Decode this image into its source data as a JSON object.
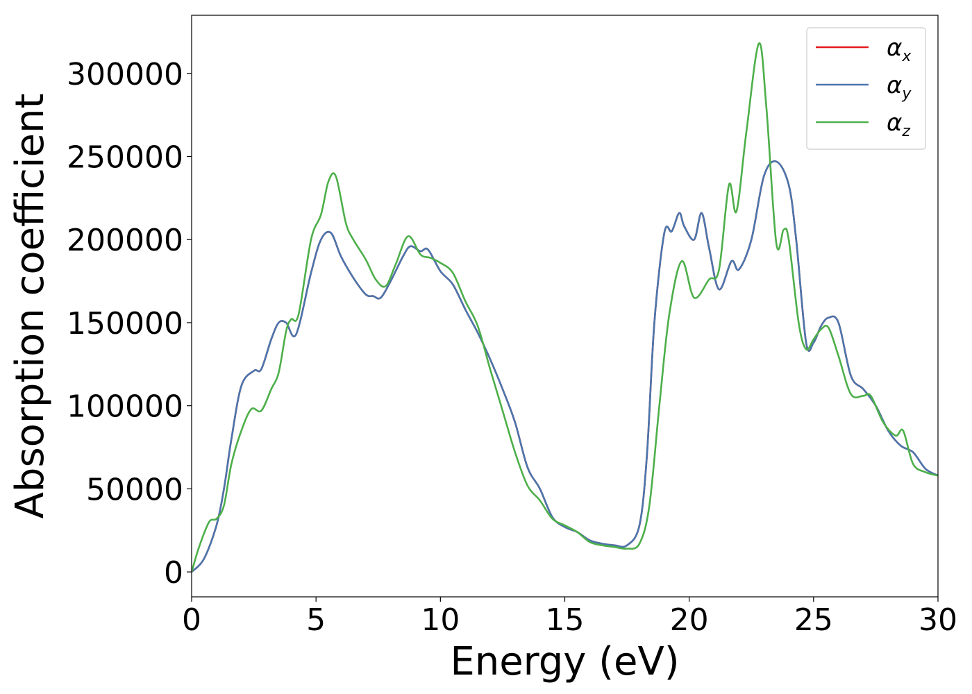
{
  "chart_data": {
    "type": "line",
    "title": "",
    "xlabel": "Energy (eV)",
    "ylabel": "Absorption coefficient",
    "xlim": [
      0,
      30
    ],
    "ylim": [
      -15000,
      335000
    ],
    "xticks": [
      0,
      5,
      10,
      15,
      20,
      25,
      30
    ],
    "xtick_labels": [
      "0",
      "5",
      "10",
      "15",
      "20",
      "25",
      "30"
    ],
    "yticks": [
      0,
      50000,
      100000,
      150000,
      200000,
      250000,
      300000
    ],
    "ytick_labels": [
      "0",
      "50000",
      "100000",
      "150000",
      "200000",
      "250000",
      "300000"
    ],
    "grid": false,
    "legend_position": "top-right",
    "series": [
      {
        "name": "αx",
        "name_base": "α",
        "name_sub": "x",
        "color": "#e41a1c",
        "x": [
          0,
          0.5,
          1,
          1.3,
          1.6,
          2,
          2.5,
          2.8,
          3.2,
          3.5,
          3.8,
          4.2,
          4.8,
          5.2,
          5.6,
          6,
          6.5,
          7,
          7.3,
          7.6,
          8,
          8.5,
          8.8,
          9.2,
          9.5,
          10,
          10.5,
          11,
          11.5,
          12,
          12.5,
          13,
          13.5,
          14,
          14.5,
          15,
          15.5,
          16,
          16.5,
          17,
          17.5,
          18,
          18.3,
          18.6,
          19,
          19.3,
          19.6,
          19.8,
          20.2,
          20.5,
          20.8,
          21.2,
          21.7,
          22,
          22.5,
          23,
          23.5,
          24,
          24.3,
          24.7,
          25,
          25.3,
          25.6,
          26,
          26.5,
          27,
          27.5,
          28,
          28.5,
          29,
          29.5,
          30
        ],
        "y": [
          0,
          8000,
          28000,
          50000,
          80000,
          112000,
          121000,
          122000,
          140000,
          150000,
          150000,
          143000,
          180000,
          200000,
          204000,
          190000,
          177000,
          167000,
          166000,
          165000,
          175000,
          190000,
          196000,
          193000,
          194000,
          181000,
          173000,
          158000,
          144000,
          128000,
          110000,
          90000,
          63000,
          50000,
          33000,
          27000,
          24000,
          19000,
          17000,
          16000,
          16000,
          28000,
          70000,
          150000,
          204000,
          205000,
          216000,
          208000,
          200000,
          216000,
          195000,
          170000,
          187000,
          182000,
          200000,
          238000,
          247000,
          233000,
          200000,
          138000,
          138000,
          148000,
          153000,
          150000,
          118000,
          110000,
          100000,
          85000,
          76000,
          72000,
          62000,
          58000
        ]
      },
      {
        "name": "αy",
        "name_base": "α",
        "name_sub": "y",
        "color": "#4a76ad",
        "x": [
          0,
          0.5,
          1,
          1.3,
          1.6,
          2,
          2.5,
          2.8,
          3.2,
          3.5,
          3.8,
          4.2,
          4.8,
          5.2,
          5.6,
          6,
          6.5,
          7,
          7.3,
          7.6,
          8,
          8.5,
          8.8,
          9.2,
          9.5,
          10,
          10.5,
          11,
          11.5,
          12,
          12.5,
          13,
          13.5,
          14,
          14.5,
          15,
          15.5,
          16,
          16.5,
          17,
          17.5,
          18,
          18.3,
          18.6,
          19,
          19.3,
          19.6,
          19.8,
          20.2,
          20.5,
          20.8,
          21.2,
          21.7,
          22,
          22.5,
          23,
          23.5,
          24,
          24.3,
          24.7,
          25,
          25.3,
          25.6,
          26,
          26.5,
          27,
          27.5,
          28,
          28.5,
          29,
          29.5,
          30
        ],
        "y": [
          0,
          8000,
          28000,
          50000,
          80000,
          112000,
          121000,
          122000,
          140000,
          150000,
          150000,
          143000,
          180000,
          200000,
          204000,
          190000,
          177000,
          167000,
          166000,
          165000,
          175000,
          190000,
          196000,
          193000,
          194000,
          181000,
          173000,
          158000,
          144000,
          128000,
          110000,
          90000,
          63000,
          50000,
          33000,
          27000,
          24000,
          19000,
          17000,
          16000,
          16000,
          28000,
          70000,
          150000,
          204000,
          205000,
          216000,
          208000,
          200000,
          216000,
          195000,
          170000,
          187000,
          182000,
          200000,
          238000,
          247000,
          233000,
          200000,
          138000,
          138000,
          148000,
          153000,
          150000,
          118000,
          110000,
          100000,
          85000,
          76000,
          72000,
          62000,
          58000
        ]
      },
      {
        "name": "αz",
        "name_base": "α",
        "name_sub": "z",
        "color": "#4daf4a",
        "x": [
          0,
          0.3,
          0.7,
          1,
          1.3,
          1.6,
          2,
          2.4,
          2.8,
          3.2,
          3.5,
          3.8,
          4,
          4.3,
          4.8,
          5.2,
          5.5,
          5.8,
          6.2,
          6.5,
          7,
          7.4,
          7.8,
          8.2,
          8.7,
          9.2,
          9.6,
          10,
          10.5,
          11,
          11.5,
          12,
          12.5,
          13,
          13.5,
          14,
          14.5,
          15,
          15.5,
          16,
          16.5,
          17,
          17.5,
          18,
          18.4,
          18.8,
          19.2,
          19.7,
          20.2,
          20.8,
          21.2,
          21.6,
          21.9,
          22.3,
          22.8,
          23.1,
          23.5,
          23.8,
          24,
          24.4,
          24.7,
          25,
          25.3,
          25.6,
          26,
          26.5,
          27,
          27.3,
          27.8,
          28.3,
          28.6,
          29,
          29.5,
          30
        ],
        "y": [
          0,
          15000,
          30000,
          32000,
          40000,
          65000,
          85000,
          98000,
          97000,
          110000,
          120000,
          145000,
          152000,
          155000,
          200000,
          215000,
          235000,
          238000,
          210000,
          200000,
          188000,
          176000,
          172000,
          185000,
          202000,
          191000,
          189000,
          186000,
          180000,
          163000,
          148000,
          122000,
          97000,
          72000,
          52000,
          43000,
          32000,
          28000,
          24000,
          18000,
          16000,
          15000,
          14000,
          17000,
          40000,
          100000,
          155000,
          187000,
          165000,
          176000,
          182000,
          233000,
          217000,
          265000,
          318000,
          280000,
          198000,
          206000,
          200000,
          150000,
          134000,
          140000,
          146000,
          147000,
          130000,
          107000,
          106000,
          106000,
          90000,
          82000,
          85000,
          65000,
          60000,
          58000
        ]
      }
    ]
  }
}
